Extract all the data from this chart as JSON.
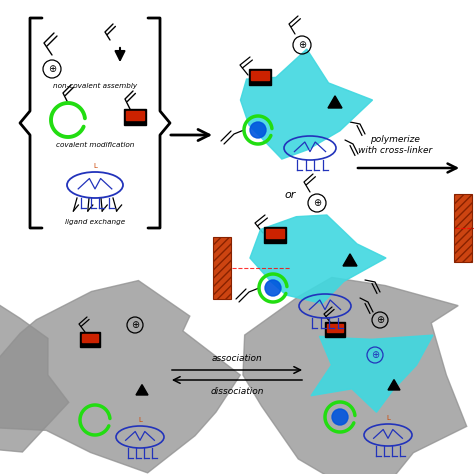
{
  "bg_color": "#ffffff",
  "text_non_covalent": "non-covalent assembly",
  "text_covalent": "covalent modification",
  "text_ligand": "ligand exchange",
  "text_polymerize": "polymerize\nwith cross-linker",
  "text_or": "or",
  "text_association": "association",
  "text_dissociation": "dissociation",
  "cyan_color": "#40d8e0",
  "cyan_color2": "#20b8d0",
  "green_color": "#22dd11",
  "red_color": "#cc2200",
  "blue_color": "#2233bb",
  "gray_color": "#909090",
  "black": "#111111",
  "orange_hatch": "#cc4411"
}
